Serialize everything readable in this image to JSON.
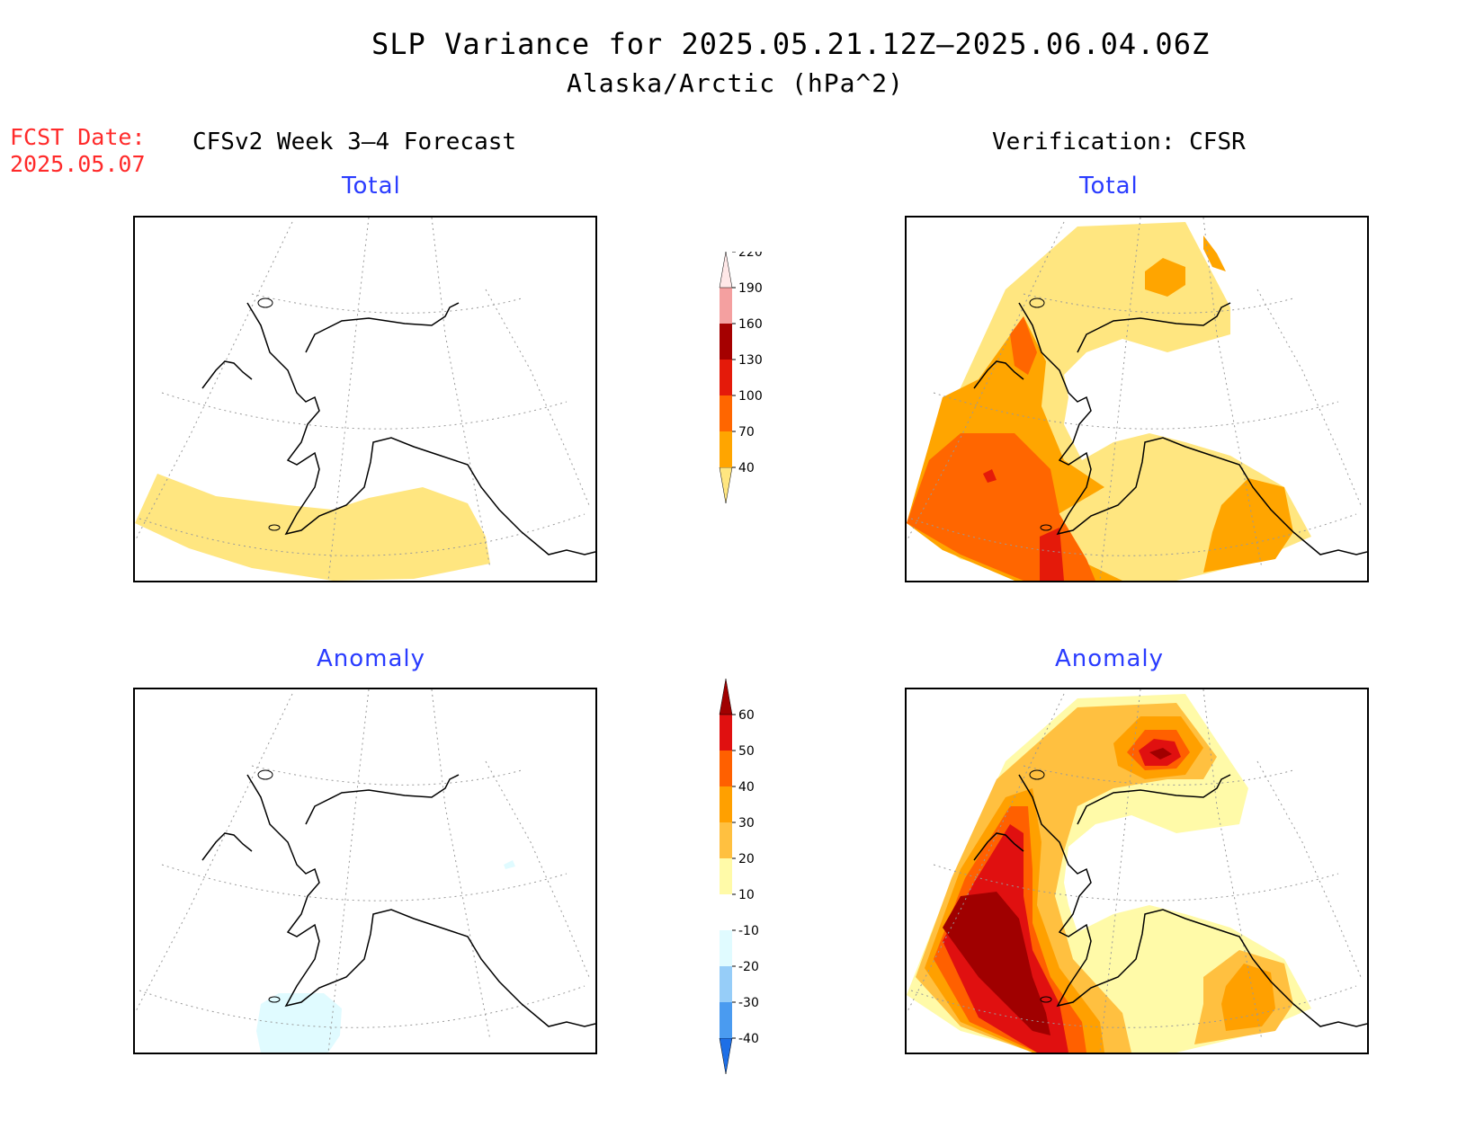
{
  "title": "SLP Variance for 2025.05.21.12Z–2025.06.04.06Z",
  "subtitle": "Alaska/Arctic (hPa^2)",
  "fcst_date_label": "FCST Date:",
  "fcst_date_value": "2025.05.07",
  "left_heading": "CFSv2 Week 3–4 Forecast",
  "right_heading": "Verification: CFSR",
  "panels": {
    "top_left_label": "Total",
    "top_right_label": "Total",
    "bottom_left_label": "Anomaly",
    "bottom_right_label": "Anomaly"
  },
  "colorbars": {
    "total": {
      "levels": [
        "40",
        "70",
        "100",
        "130",
        "160",
        "190",
        "220"
      ],
      "colors": [
        "#ffe680",
        "#ffa500",
        "#ff6600",
        "#e41a0a",
        "#a50000",
        "#f4a0a0",
        "#ffe8e8"
      ]
    },
    "anomaly": {
      "levels": [
        "-40",
        "-30",
        "-20",
        "-10",
        "10",
        "20",
        "30",
        "40",
        "50",
        "60"
      ],
      "colors": [
        "#1e6fe6",
        "#4a9bf0",
        "#96cdf8",
        "#e0fbff",
        "#ffffff",
        "#fffaa8",
        "#ffc040",
        "#ffa000",
        "#ff6000",
        "#e01010",
        "#a00000"
      ]
    }
  },
  "colors": {
    "title_red": "#ff2a2a",
    "label_blue": "#2a3cff"
  }
}
